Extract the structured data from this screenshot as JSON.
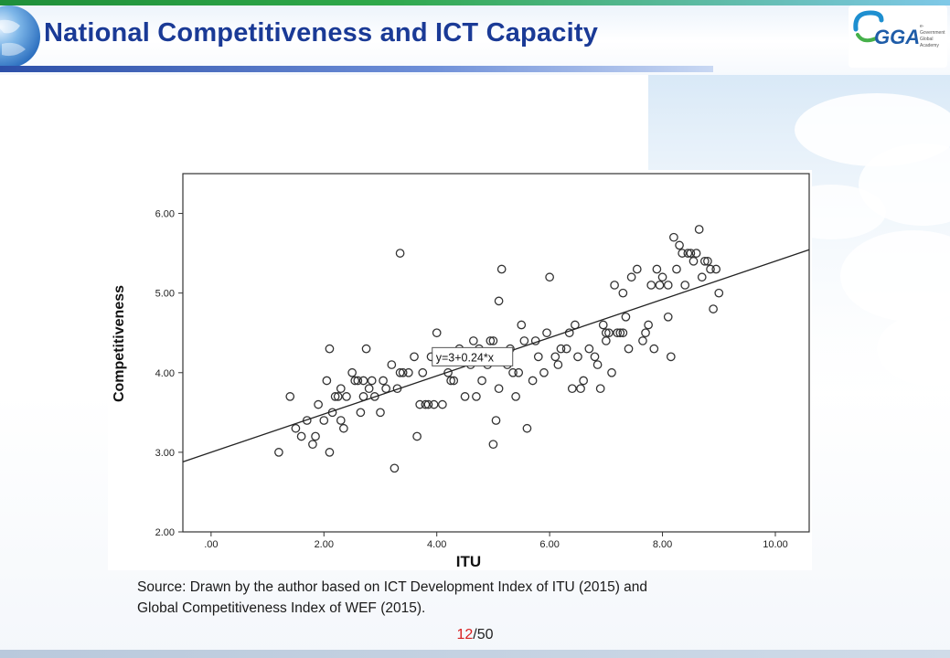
{
  "slide": {
    "title": "National Competitiveness and ICT Capacity",
    "logo": {
      "text": "GGA",
      "subtitle": "e-Government Global Academy"
    },
    "source_line1": "Source: Drawn by the author based on ICT Development Index of ITU (2015) and",
    "source_line2": "Global Competitiveness Index of WEF (2015).",
    "page_current": "12",
    "page_total": "/50"
  },
  "colors": {
    "title": "#1a3a96",
    "page_current": "#d82020",
    "accent_bar": "#2c4fa8"
  },
  "chart_data": {
    "type": "scatter",
    "xlabel": "ITU",
    "ylabel": "Competitiveness",
    "xlim": [
      -0.5,
      10.6
    ],
    "ylim": [
      2.0,
      6.5
    ],
    "x_ticks": [
      0,
      2,
      4,
      6,
      8,
      10
    ],
    "x_tick_labels": [
      ".00",
      "2.00",
      "4.00",
      "6.00",
      "8.00",
      "10.00"
    ],
    "y_ticks": [
      2,
      3,
      4,
      5,
      6
    ],
    "y_tick_labels": [
      "2.00",
      "3.00",
      "4.00",
      "5.00",
      "6.00"
    ],
    "grid": false,
    "fit_line": {
      "intercept": 3,
      "slope": 0.24,
      "label": "y=3+0.24*x",
      "label_at": [
        4.6,
        4.2
      ]
    },
    "points": [
      [
        1.2,
        3.0
      ],
      [
        1.4,
        3.7
      ],
      [
        1.5,
        3.3
      ],
      [
        1.6,
        3.2
      ],
      [
        1.7,
        3.4
      ],
      [
        1.8,
        3.1
      ],
      [
        1.85,
        3.2
      ],
      [
        1.9,
        3.6
      ],
      [
        2.0,
        3.4
      ],
      [
        2.05,
        3.9
      ],
      [
        2.1,
        4.3
      ],
      [
        2.1,
        3.0
      ],
      [
        2.15,
        3.5
      ],
      [
        2.2,
        3.7
      ],
      [
        2.25,
        3.7
      ],
      [
        2.3,
        3.8
      ],
      [
        2.3,
        3.4
      ],
      [
        2.35,
        3.3
      ],
      [
        2.4,
        3.7
      ],
      [
        2.5,
        4.0
      ],
      [
        2.55,
        3.9
      ],
      [
        2.6,
        3.9
      ],
      [
        2.65,
        3.5
      ],
      [
        2.7,
        3.9
      ],
      [
        2.7,
        3.7
      ],
      [
        2.75,
        4.3
      ],
      [
        2.8,
        3.8
      ],
      [
        2.85,
        3.9
      ],
      [
        2.9,
        3.7
      ],
      [
        3.0,
        3.5
      ],
      [
        3.05,
        3.9
      ],
      [
        3.1,
        3.8
      ],
      [
        3.2,
        4.1
      ],
      [
        3.25,
        2.8
      ],
      [
        3.3,
        3.8
      ],
      [
        3.35,
        4.0
      ],
      [
        3.35,
        5.5
      ],
      [
        3.4,
        4.0
      ],
      [
        3.5,
        4.0
      ],
      [
        3.6,
        4.2
      ],
      [
        3.65,
        3.2
      ],
      [
        3.7,
        3.6
      ],
      [
        3.75,
        4.0
      ],
      [
        3.8,
        3.6
      ],
      [
        3.85,
        3.6
      ],
      [
        3.9,
        4.2
      ],
      [
        3.95,
        3.6
      ],
      [
        4.0,
        4.5
      ],
      [
        4.1,
        3.6
      ],
      [
        4.15,
        4.2
      ],
      [
        4.2,
        4.0
      ],
      [
        4.25,
        3.9
      ],
      [
        4.3,
        3.9
      ],
      [
        4.35,
        4.2
      ],
      [
        4.4,
        4.3
      ],
      [
        4.5,
        3.7
      ],
      [
        4.6,
        4.1
      ],
      [
        4.65,
        4.4
      ],
      [
        4.7,
        3.7
      ],
      [
        4.75,
        4.3
      ],
      [
        4.8,
        3.9
      ],
      [
        4.85,
        4.2
      ],
      [
        4.9,
        4.1
      ],
      [
        4.95,
        4.4
      ],
      [
        5.0,
        4.4
      ],
      [
        5.0,
        3.1
      ],
      [
        5.05,
        3.4
      ],
      [
        5.1,
        3.8
      ],
      [
        5.1,
        4.9
      ],
      [
        5.15,
        5.3
      ],
      [
        5.2,
        4.2
      ],
      [
        5.25,
        4.1
      ],
      [
        5.3,
        4.3
      ],
      [
        5.35,
        4.0
      ],
      [
        5.4,
        3.7
      ],
      [
        5.45,
        4.0
      ],
      [
        5.5,
        4.6
      ],
      [
        5.55,
        4.4
      ],
      [
        5.6,
        3.3
      ],
      [
        5.7,
        3.9
      ],
      [
        5.75,
        4.4
      ],
      [
        5.8,
        4.2
      ],
      [
        5.9,
        4.0
      ],
      [
        5.95,
        4.5
      ],
      [
        6.0,
        5.2
      ],
      [
        6.1,
        4.2
      ],
      [
        6.15,
        4.1
      ],
      [
        6.2,
        4.3
      ],
      [
        6.3,
        4.3
      ],
      [
        6.35,
        4.5
      ],
      [
        6.4,
        3.8
      ],
      [
        6.45,
        4.6
      ],
      [
        6.5,
        4.2
      ],
      [
        6.55,
        3.8
      ],
      [
        6.6,
        3.9
      ],
      [
        6.7,
        4.3
      ],
      [
        6.8,
        4.2
      ],
      [
        6.85,
        4.1
      ],
      [
        6.9,
        3.8
      ],
      [
        6.95,
        4.6
      ],
      [
        7.0,
        4.4
      ],
      [
        7.0,
        4.5
      ],
      [
        7.05,
        4.5
      ],
      [
        7.1,
        4.0
      ],
      [
        7.15,
        5.1
      ],
      [
        7.2,
        4.5
      ],
      [
        7.25,
        4.5
      ],
      [
        7.3,
        4.5
      ],
      [
        7.3,
        5.0
      ],
      [
        7.35,
        4.7
      ],
      [
        7.4,
        4.3
      ],
      [
        7.45,
        5.2
      ],
      [
        7.55,
        5.3
      ],
      [
        7.65,
        4.4
      ],
      [
        7.7,
        4.5
      ],
      [
        7.75,
        4.6
      ],
      [
        7.8,
        5.1
      ],
      [
        7.85,
        4.3
      ],
      [
        7.9,
        5.3
      ],
      [
        7.95,
        5.1
      ],
      [
        8.0,
        5.2
      ],
      [
        8.1,
        5.1
      ],
      [
        8.1,
        4.7
      ],
      [
        8.15,
        4.2
      ],
      [
        8.2,
        5.7
      ],
      [
        8.25,
        5.3
      ],
      [
        8.3,
        5.6
      ],
      [
        8.35,
        5.5
      ],
      [
        8.4,
        5.1
      ],
      [
        8.45,
        5.5
      ],
      [
        8.5,
        5.5
      ],
      [
        8.55,
        5.4
      ],
      [
        8.6,
        5.5
      ],
      [
        8.65,
        5.8
      ],
      [
        8.7,
        5.2
      ],
      [
        8.75,
        5.4
      ],
      [
        8.8,
        5.4
      ],
      [
        8.85,
        5.3
      ],
      [
        8.9,
        4.8
      ],
      [
        8.95,
        5.3
      ],
      [
        9.0,
        5.0
      ]
    ]
  }
}
